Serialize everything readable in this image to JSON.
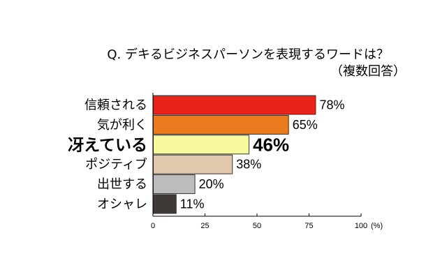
{
  "chart_data": {
    "type": "bar",
    "orientation": "horizontal",
    "title": "Q. デキるビジネスパーソンを表現するワードは？",
    "subtitle": "（複数回答）",
    "categories": [
      "信頼される",
      "気が利く",
      "冴えている",
      "ポジティブ",
      "出世する",
      "オシャレ"
    ],
    "values": [
      78,
      65,
      46,
      38,
      20,
      11
    ],
    "value_labels": [
      "78%",
      "65%",
      "46%",
      "38%",
      "20%",
      "11%"
    ],
    "highlight_index": 2,
    "colors": [
      "#e8231b",
      "#ea7c1f",
      "#f7fb9e",
      "#e2c9ad",
      "#bcbcbc",
      "#3f3a38"
    ],
    "xlim": [
      0,
      100
    ],
    "xticks": [
      0,
      25,
      50,
      75,
      100
    ],
    "tick_labels": [
      "0",
      "25",
      "50",
      "75",
      "100"
    ],
    "xunit": "(%)",
    "grid": false,
    "legend": "none"
  }
}
